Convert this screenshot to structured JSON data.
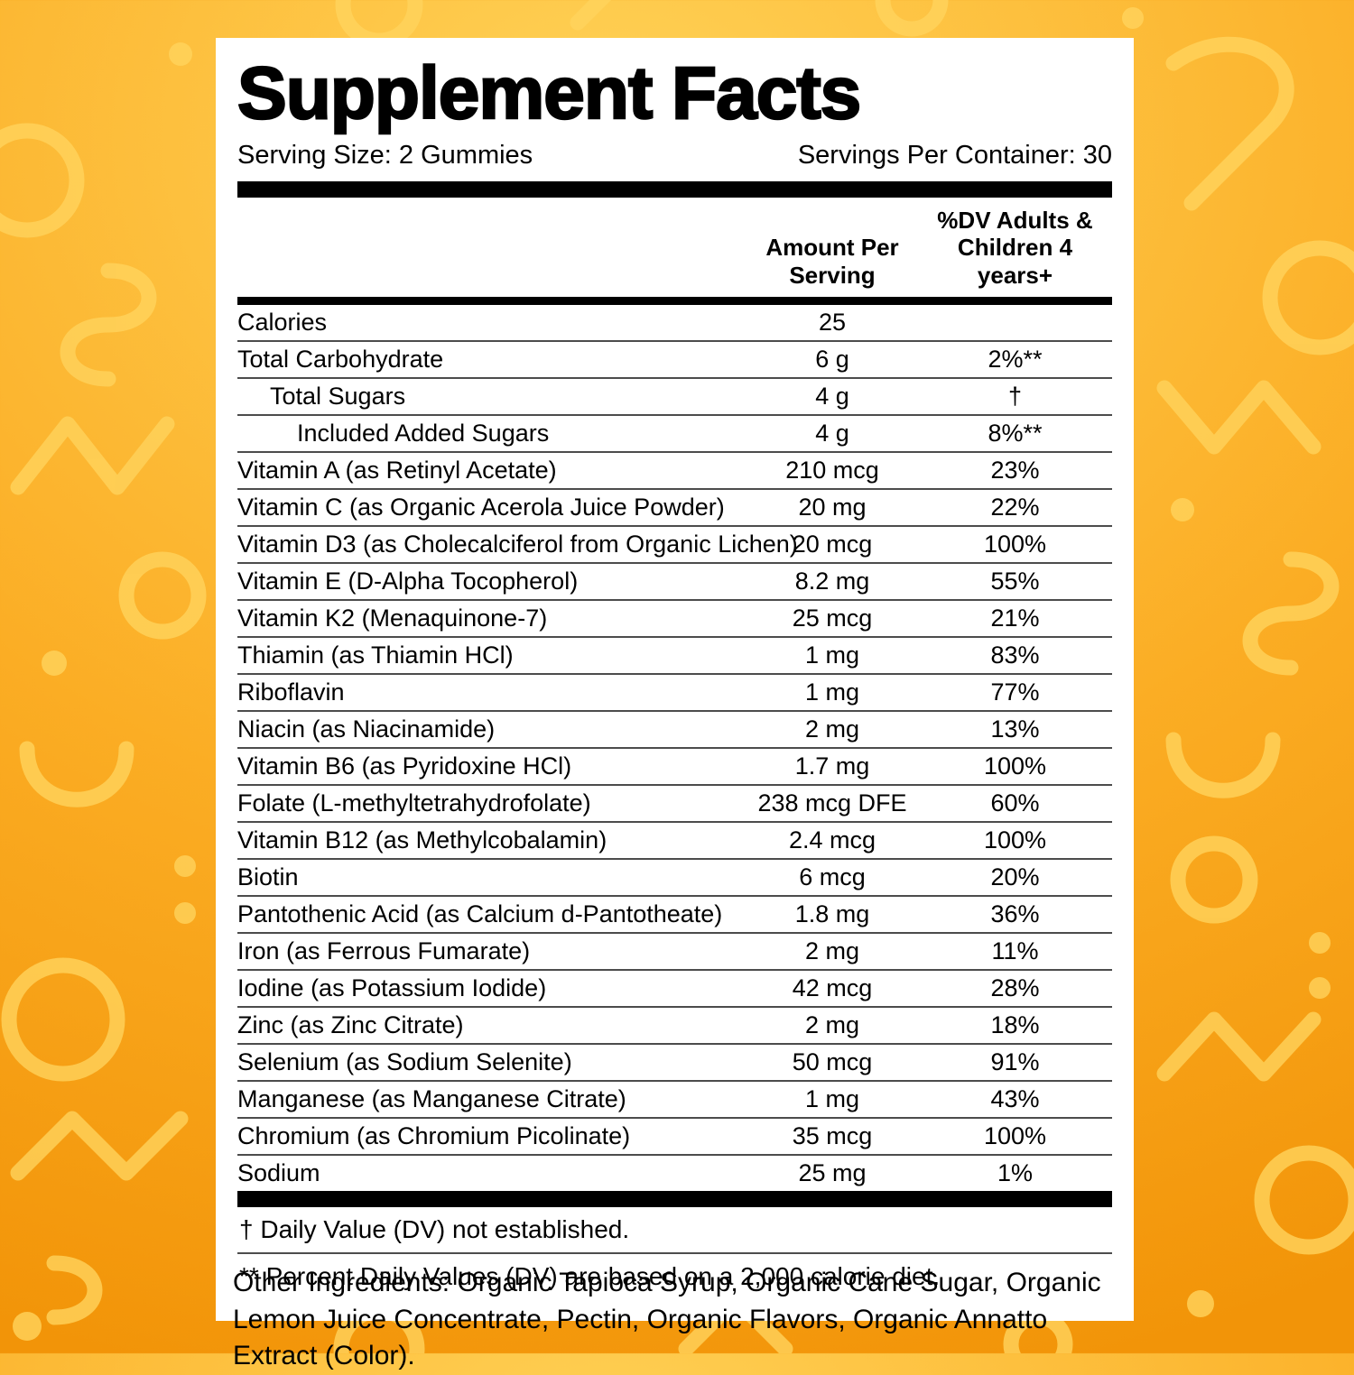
{
  "label": {
    "title": "Supplement Facts",
    "serving_size": "Serving Size: 2 Gummies",
    "servings_per_container": "Servings Per Container: 30",
    "col_amount_header": "Amount Per\nServing",
    "col_dv_header": "%DV Adults &\nChildren 4 years+",
    "rows": [
      {
        "name": "Calories",
        "amount": "25",
        "dv": "",
        "indent": 0
      },
      {
        "name": "Total Carbohydrate",
        "amount": "6 g",
        "dv": "2%**",
        "indent": 0
      },
      {
        "name": "Total Sugars",
        "amount": "4 g",
        "dv": "†",
        "indent": 1
      },
      {
        "name": "Included Added Sugars",
        "amount": "4 g",
        "dv": "8%**",
        "indent": 2
      },
      {
        "name": "Vitamin A (as Retinyl Acetate)",
        "amount": "210 mcg",
        "dv": "23%",
        "indent": 0
      },
      {
        "name": "Vitamin C (as Organic Acerola Juice Powder)",
        "amount": "20 mg",
        "dv": "22%",
        "indent": 0
      },
      {
        "name": "Vitamin D3 (as Cholecalciferol from Organic Lichen)",
        "amount": "20 mcg",
        "dv": "100%",
        "indent": 0
      },
      {
        "name": "Vitamin E (D-Alpha Tocopherol)",
        "amount": "8.2 mg",
        "dv": "55%",
        "indent": 0
      },
      {
        "name": "Vitamin K2 (Menaquinone-7)",
        "amount": "25 mcg",
        "dv": "21%",
        "indent": 0
      },
      {
        "name": "Thiamin (as Thiamin HCl)",
        "amount": "1 mg",
        "dv": "83%",
        "indent": 0
      },
      {
        "name": "Riboflavin",
        "amount": "1 mg",
        "dv": "77%",
        "indent": 0
      },
      {
        "name": "Niacin (as Niacinamide)",
        "amount": "2 mg",
        "dv": "13%",
        "indent": 0
      },
      {
        "name": "Vitamin B6 (as Pyridoxine HCl)",
        "amount": "1.7 mg",
        "dv": "100%",
        "indent": 0
      },
      {
        "name": "Folate (L-methyltetrahydrofolate)",
        "amount": "238 mcg DFE",
        "dv": "60%",
        "indent": 0
      },
      {
        "name": "Vitamin B12 (as Methylcobalamin)",
        "amount": "2.4 mcg",
        "dv": "100%",
        "indent": 0
      },
      {
        "name": "Biotin",
        "amount": "6 mcg",
        "dv": "20%",
        "indent": 0
      },
      {
        "name": "Pantothenic Acid (as Calcium d-Pantotheate)",
        "amount": "1.8 mg",
        "dv": "36%",
        "indent": 0
      },
      {
        "name": "Iron (as Ferrous Fumarate)",
        "amount": "2 mg",
        "dv": "11%",
        "indent": 0
      },
      {
        "name": "Iodine (as Potassium Iodide)",
        "amount": "42 mcg",
        "dv": "28%",
        "indent": 0
      },
      {
        "name": "Zinc (as Zinc Citrate)",
        "amount": "2 mg",
        "dv": "18%",
        "indent": 0
      },
      {
        "name": "Selenium (as Sodium Selenite)",
        "amount": "50 mcg",
        "dv": "91%",
        "indent": 0
      },
      {
        "name": "Manganese (as Manganese Citrate)",
        "amount": "1 mg",
        "dv": "43%",
        "indent": 0
      },
      {
        "name": "Chromium (as Chromium Picolinate)",
        "amount": "35 mcg",
        "dv": "100%",
        "indent": 0
      },
      {
        "name": "Sodium",
        "amount": "25 mg",
        "dv": "1%",
        "indent": 0
      }
    ],
    "footnotes": [
      "† Daily Value (DV) not established.",
      "** Percent Daily Values (DV) are based on a 2,000 calorie diet."
    ],
    "other_ingredients": "Other Ingredients: Organic Tapioca Syrup, Organic Cane Sugar, Organic Lemon Juice Concentrate, Pectin, Organic Flavors, Organic Annatto Extract (Color)."
  },
  "colors": {
    "background_light": "#FFD257",
    "background_dark": "#F29408",
    "pattern": "#FFD35C",
    "card": "#FFFFFF",
    "text": "#000000",
    "hairline": "#4C4C4C"
  }
}
